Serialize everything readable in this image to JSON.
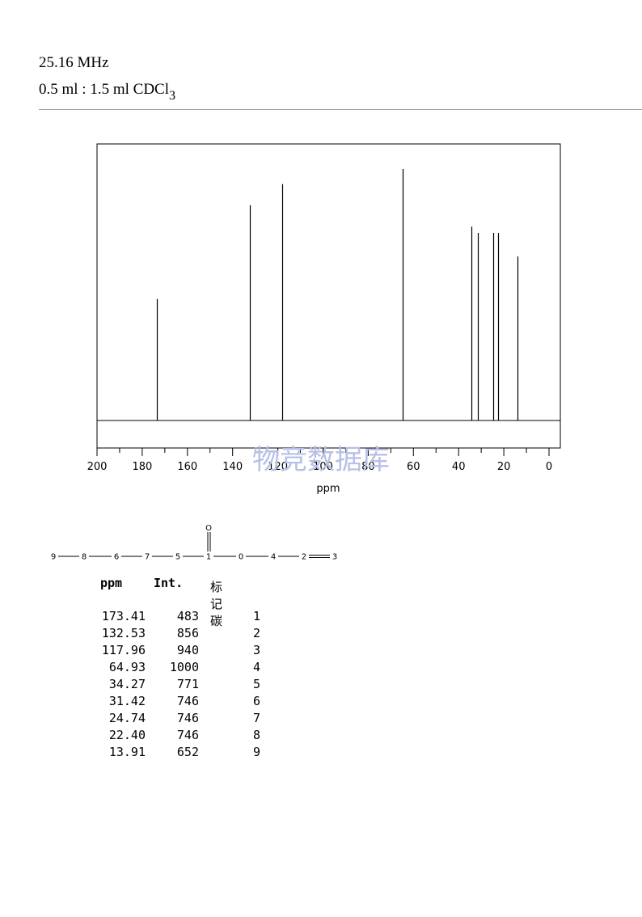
{
  "header": {
    "frequency": "25.16 MHz",
    "solvent_main": "0.5 ml : 1.5 ml CDCl",
    "solvent_sub": "3"
  },
  "watermark": "物竞数据库",
  "chart_data": {
    "type": "line",
    "xlabel": "ppm",
    "xlim": [
      200,
      0
    ],
    "ticks": [
      200,
      180,
      160,
      140,
      120,
      100,
      80,
      60,
      40,
      20,
      0
    ],
    "tick_labels": [
      "200",
      "180",
      "160",
      "140",
      "120",
      "100",
      "80",
      "60",
      "40",
      "20",
      "0"
    ],
    "ymax": 1000,
    "peaks": [
      {
        "ppm": 173.41,
        "intensity": 483
      },
      {
        "ppm": 132.53,
        "intensity": 856
      },
      {
        "ppm": 117.96,
        "intensity": 940
      },
      {
        "ppm": 64.93,
        "intensity": 1000
      },
      {
        "ppm": 34.27,
        "intensity": 771
      },
      {
        "ppm": 31.42,
        "intensity": 746
      },
      {
        "ppm": 24.74,
        "intensity": 746
      },
      {
        "ppm": 22.4,
        "intensity": 746
      },
      {
        "ppm": 13.91,
        "intensity": 652
      }
    ]
  },
  "structure": {
    "chain_labels": [
      "9",
      "8",
      "6",
      "7",
      "5",
      "1",
      "0",
      "4",
      "2",
      "3"
    ],
    "carbonyl_o": "O"
  },
  "table": {
    "headers": {
      "ppm": "ppm",
      "int": "Int.",
      "carbon": "标记碳"
    },
    "rows": [
      {
        "ppm": "173.41",
        "int": "483",
        "carbon": "1"
      },
      {
        "ppm": "132.53",
        "int": "856",
        "carbon": "2"
      },
      {
        "ppm": "117.96",
        "int": "940",
        "carbon": "3"
      },
      {
        "ppm": "64.93",
        "int": "1000",
        "carbon": "4"
      },
      {
        "ppm": "34.27",
        "int": "771",
        "carbon": "5"
      },
      {
        "ppm": "31.42",
        "int": "746",
        "carbon": "6"
      },
      {
        "ppm": "24.74",
        "int": "746",
        "carbon": "7"
      },
      {
        "ppm": "22.40",
        "int": "746",
        "carbon": "8"
      },
      {
        "ppm": "13.91",
        "int": "652",
        "carbon": "9"
      }
    ]
  }
}
